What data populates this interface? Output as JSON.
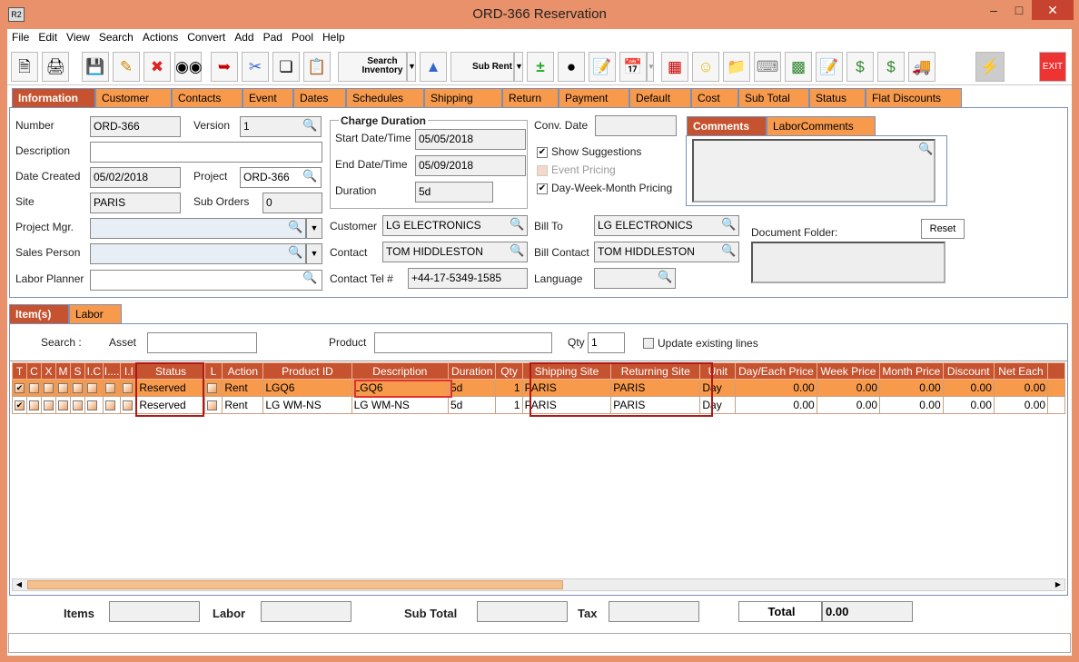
{
  "window": {
    "title": "ORD-366 Reservation",
    "app_icon": "R2"
  },
  "menu": [
    "File",
    "Edit",
    "View",
    "Search",
    "Actions",
    "Convert",
    "Add",
    "Pad",
    "Pool",
    "Help"
  ],
  "toolbar": {
    "search_inventory": "Search Inventory",
    "sub_rent": "Sub Rent",
    "exit": "EXIT"
  },
  "tabs": [
    "Information",
    "Customer",
    "Contacts",
    "Event",
    "Dates",
    "Schedules",
    "Shipping",
    "Return",
    "Payment",
    "Default",
    "Cost",
    "Sub Total",
    "Status",
    "Flat Discounts"
  ],
  "info": {
    "number_label": "Number",
    "number": "ORD-366",
    "version_label": "Version",
    "version": "1",
    "description_label": "Description",
    "description": "",
    "date_created_label": "Date Created",
    "date_created": "05/02/2018",
    "project_label": "Project",
    "project": "ORD-366",
    "site_label": "Site",
    "site": "PARIS",
    "sub_orders_label": "Sub Orders",
    "sub_orders": "0",
    "project_mgr_label": "Project Mgr.",
    "project_mgr": "",
    "sales_person_label": "Sales Person",
    "sales_person": "",
    "labor_planner_label": "Labor Planner",
    "labor_planner": "",
    "charge_duration_title": "Charge Duration",
    "start_label": "Start Date/Time",
    "start": "05/05/2018",
    "end_label": "End Date/Time",
    "end": "05/09/2018",
    "duration_label": "Duration",
    "duration": "5d",
    "conv_date_label": "Conv. Date",
    "conv_date": "",
    "show_suggestions": "Show Suggestions",
    "event_pricing": "Event Pricing",
    "dwm_pricing": "Day-Week-Month Pricing",
    "customer_label": "Customer",
    "customer": "LG ELECTRONICS",
    "contact_label": "Contact",
    "contact": "TOM HIDDLESTON",
    "contact_tel_label": "Contact Tel #",
    "contact_tel": "+44-17-5349-1585",
    "bill_to_label": "Bill To",
    "bill_to": "LG ELECTRONICS",
    "bill_contact_label": "Bill Contact",
    "bill_contact": "TOM HIDDLESTON",
    "language_label": "Language",
    "language": "",
    "comments_tab": "Comments",
    "labor_comments_tab": "LaborComments",
    "document_folder_label": "Document Folder:",
    "reset": "Reset"
  },
  "item_tabs": [
    "Item(s)",
    "Labor"
  ],
  "search": {
    "label": "Search :",
    "asset_label": "Asset",
    "asset": "",
    "product_label": "Product",
    "product": "",
    "qty_label": "Qty",
    "qty": "1",
    "update_label": "Update existing lines"
  },
  "grid": {
    "columns": [
      "T",
      "C",
      "X",
      "M",
      "S",
      "I.C",
      "I....",
      "I.I",
      "Status",
      "L",
      "Action",
      "Product ID",
      "Description",
      "Duration",
      "Qty",
      "Shipping Site",
      "Returning Site",
      "Unit",
      "Day/Each Price",
      "Week Price",
      "Month Price",
      "Discount",
      "Net Each"
    ],
    "rows": [
      {
        "status": "Reserved",
        "action": "Rent",
        "product_id": "LGQ6",
        "description": "LGQ6",
        "duration": "5d",
        "qty": "1",
        "shipping": "PARIS",
        "returning": "PARIS",
        "unit": "Day",
        "day": "0.00",
        "week": "0.00",
        "month": "0.00",
        "discount": "0.00",
        "net": "0.00"
      },
      {
        "status": "Reserved",
        "action": "Rent",
        "product_id": "LG WM-NS",
        "description": "LG WM-NS",
        "duration": "5d",
        "qty": "1",
        "shipping": "PARIS",
        "returning": "PARIS",
        "unit": "Day",
        "day": "0.00",
        "week": "0.00",
        "month": "0.00",
        "discount": "0.00",
        "net": "0.00"
      }
    ]
  },
  "totals": {
    "items_label": "Items",
    "items": "",
    "labor_label": "Labor",
    "labor": "",
    "subtotal_label": "Sub Total",
    "subtotal": "",
    "tax_label": "Tax",
    "tax": "",
    "total_label": "Total",
    "total": "0.00"
  },
  "colors": {
    "accent": "#c5532f",
    "tab": "#f79a4c",
    "frame": "#e9916a"
  }
}
